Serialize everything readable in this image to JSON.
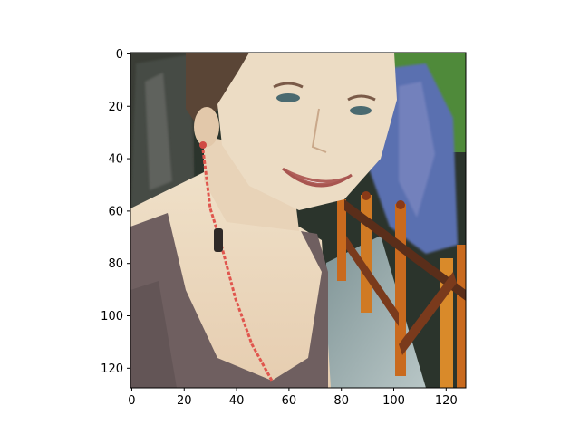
{
  "figure": {
    "image_description_alt": "Pixelated 128x128 photo",
    "x_ticks": [
      "0",
      "20",
      "40",
      "60",
      "80",
      "100",
      "120"
    ],
    "y_ticks": [
      "0",
      "20",
      "40",
      "60",
      "80",
      "100",
      "120"
    ],
    "x_range": [
      0,
      128
    ],
    "y_range": [
      0,
      128
    ],
    "y_inverted": true,
    "colors": {
      "background_dark": "#2f3a2e",
      "foliage_green": "#4f8a3a",
      "flower_blue": "#5a6fb0",
      "skin": "#e8d3b8",
      "hair": "#5a4536",
      "tank_top": "#6f5f60",
      "necklace": "#e0564e",
      "railing_orange": "#c96a1e",
      "railing_dark": "#5a2e1a",
      "walkway": "#9fb2b4"
    }
  }
}
